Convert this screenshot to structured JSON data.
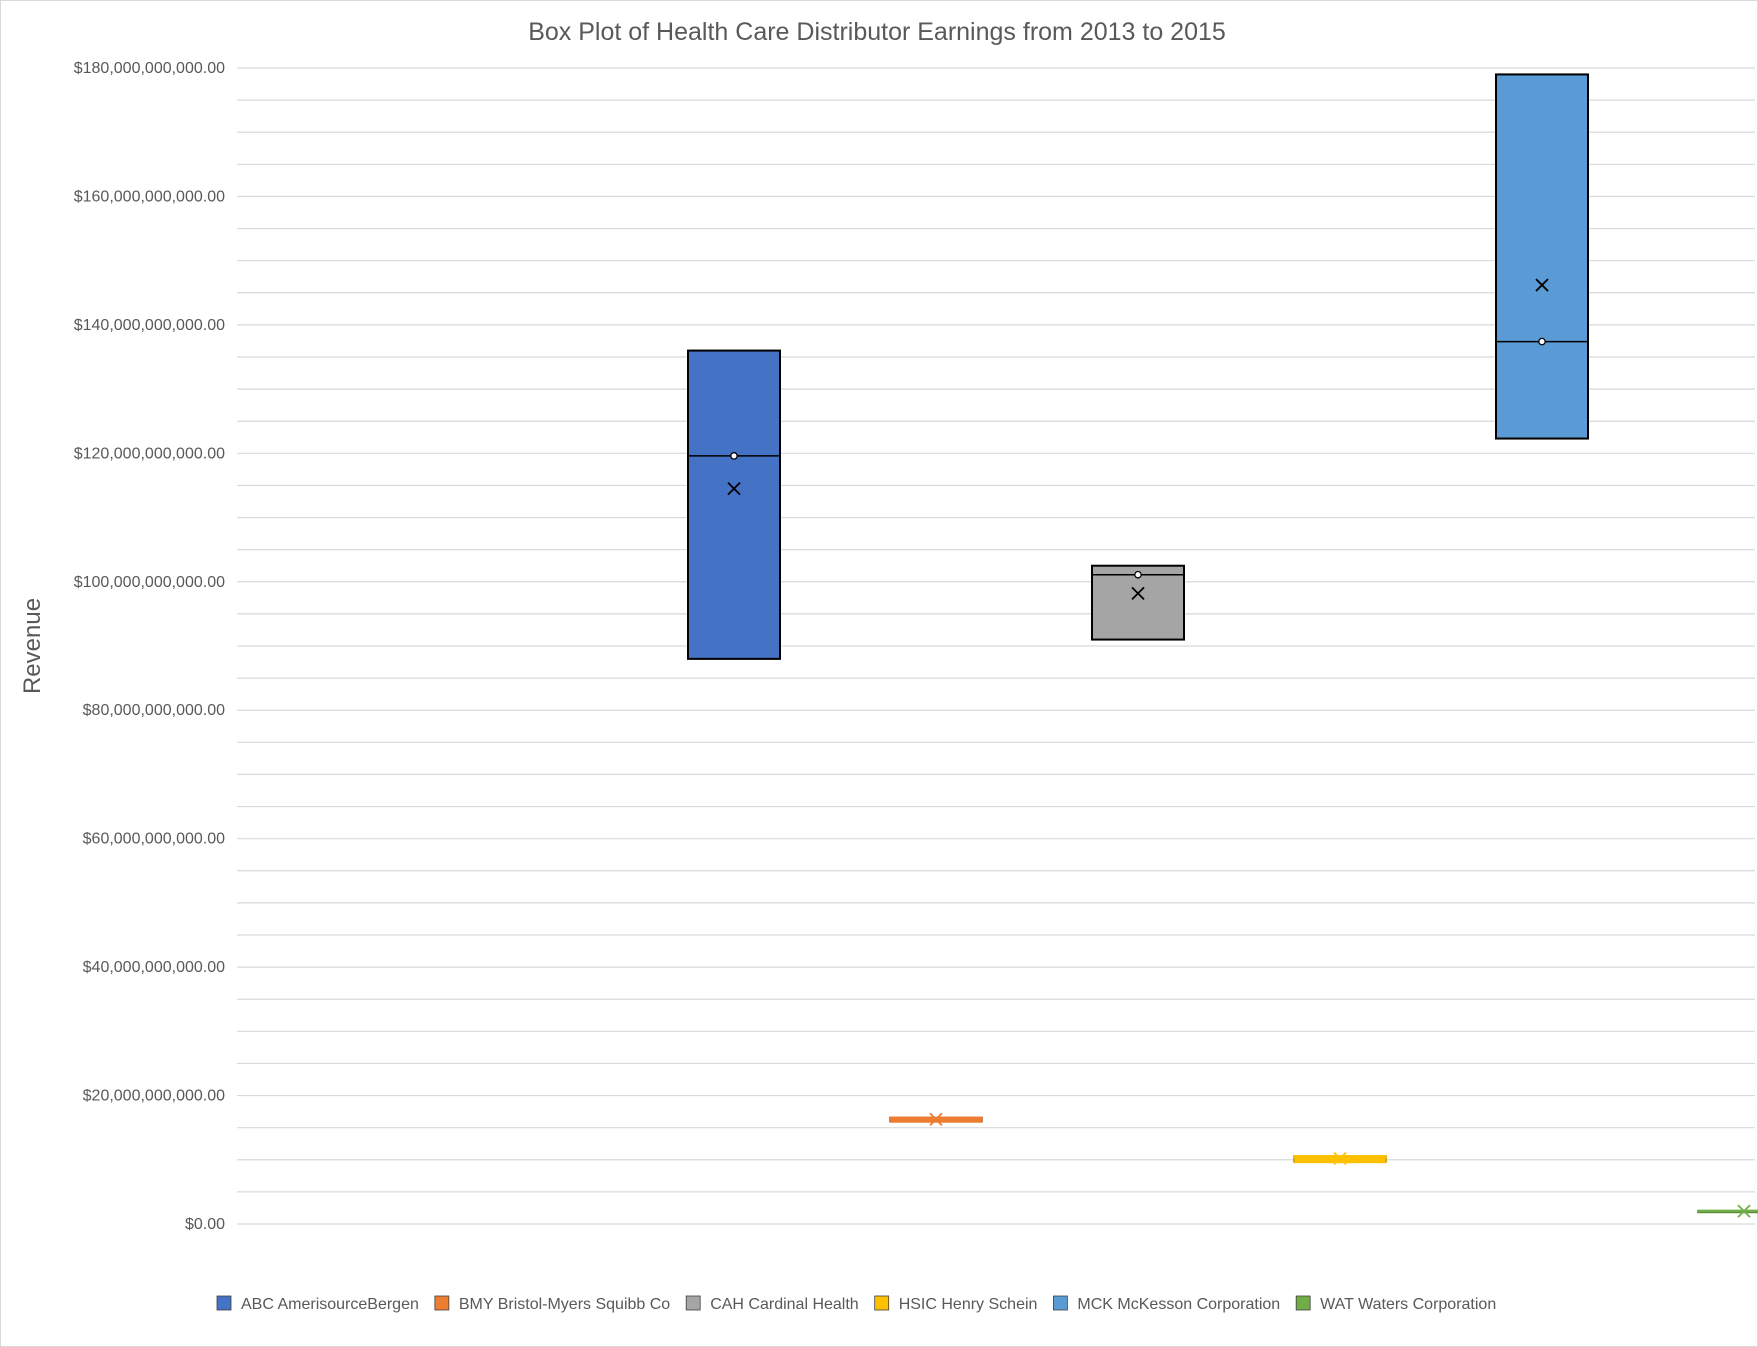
{
  "chart_data": {
    "type": "box",
    "title": "Box Plot of Health Care Distributor Earnings from 2013 to 2015",
    "ylabel": "Revenue",
    "xlabel": "",
    "ylim": [
      0,
      180000000000
    ],
    "grid": true,
    "legend_position": "bottom",
    "y_ticks": [
      {
        "value": 0,
        "label": "$0.00"
      },
      {
        "value": 20000000000,
        "label": "$20,000,000,000.00"
      },
      {
        "value": 40000000000,
        "label": "$40,000,000,000.00"
      },
      {
        "value": 60000000000,
        "label": "$60,000,000,000.00"
      },
      {
        "value": 80000000000,
        "label": "$80,000,000,000.00"
      },
      {
        "value": 100000000000,
        "label": "$100,000,000,000.00"
      },
      {
        "value": 120000000000,
        "label": "$120,000,000,000.00"
      },
      {
        "value": 140000000000,
        "label": "$140,000,000,000.00"
      },
      {
        "value": 160000000000,
        "label": "$160,000,000,000.00"
      },
      {
        "value": 180000000000,
        "label": "$180,000,000,000.00"
      }
    ],
    "series": [
      {
        "name": "ABC AmerisourceBergen",
        "color": "#4472c4",
        "min": 88000000000,
        "q1": 88000000000,
        "median": 119600000000,
        "q3": 136000000000,
        "max": 136000000000,
        "mean": 114500000000
      },
      {
        "name": "BMY Bristol-Myers Squibb Co",
        "color": "#ed7d31",
        "min": 15900000000,
        "q1": 15900000000,
        "median": 16300000000,
        "q3": 16600000000,
        "max": 16600000000,
        "mean": 16300000000
      },
      {
        "name": "CAH Cardinal Health",
        "color": "#a5a5a5",
        "min": 91000000000,
        "q1": 91000000000,
        "median": 101100000000,
        "q3": 102500000000,
        "max": 102500000000,
        "mean": 98200000000
      },
      {
        "name": "HSIC Henry Schein",
        "color": "#ffc000",
        "min": 9600000000,
        "q1": 9600000000,
        "median": 10400000000,
        "q3": 10600000000,
        "max": 10600000000,
        "mean": 10200000000
      },
      {
        "name": "MCK McKesson Corporation",
        "color": "#5b9bd5",
        "min": 122300000000,
        "q1": 122300000000,
        "median": 137400000000,
        "q3": 179000000000,
        "max": 179000000000,
        "mean": 146200000000
      },
      {
        "name": "WAT Waters Corporation",
        "color": "#70ad47",
        "min": 1900000000,
        "q1": 1900000000,
        "median": 2000000000,
        "q3": 2100000000,
        "max": 2100000000,
        "mean": 2000000000
      }
    ]
  }
}
